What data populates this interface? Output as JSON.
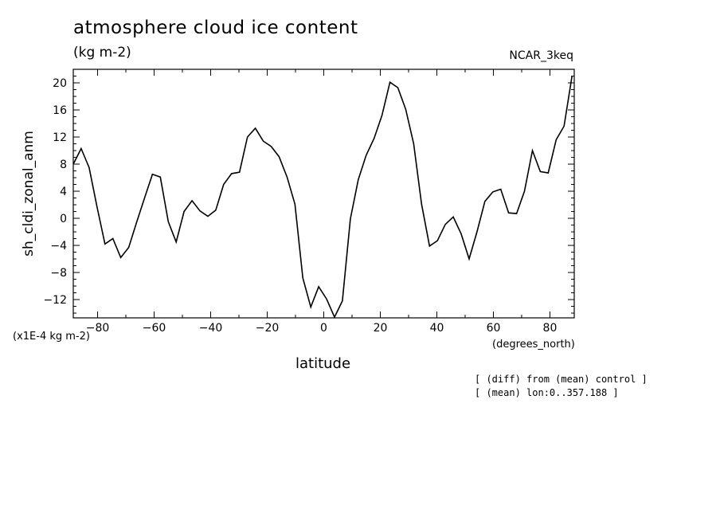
{
  "header": {
    "title": "atmosphere cloud ice content",
    "units": "(kg m-2)",
    "model": "NCAR_3keq"
  },
  "axes": {
    "ylabel": "sh_cldi_zonal_anm",
    "xlabel": "latitude",
    "yscale_note": "(x1E-4 kg m-2)",
    "xunits": "(degrees_north)"
  },
  "notes": {
    "line1": "[ (diff) from (mean) control ]",
    "line2": "[ (mean) lon:0..357.188 ]"
  },
  "colors": {
    "line": "#000000",
    "background": "#ffffff"
  },
  "chart_data": {
    "type": "line",
    "title": "atmosphere cloud ice content",
    "xlabel": "latitude",
    "ylabel": "sh_cldi_zonal_anm",
    "xlim": [
      -88.6,
      88.6
    ],
    "ylim": [
      -14.7,
      22
    ],
    "xticks": [
      -80,
      -60,
      -40,
      -20,
      0,
      20,
      40,
      60,
      80
    ],
    "yticks": [
      -12,
      -8,
      -4,
      0,
      4,
      8,
      12,
      16,
      20
    ],
    "grid": false,
    "series": [
      {
        "x": [
          -88.6,
          -85.8,
          -83.0,
          -80.2,
          -77.4,
          -74.6,
          -71.8,
          -69.0,
          -66.2,
          -63.4,
          -60.6,
          -57.8,
          -55.0,
          -52.2,
          -49.4,
          -46.6,
          -43.8,
          -41.0,
          -38.2,
          -35.4,
          -32.6,
          -29.8,
          -27.0,
          -24.2,
          -21.4,
          -18.6,
          -15.8,
          -13.0,
          -10.2,
          -7.4,
          -4.6,
          -1.8,
          1.0,
          3.8,
          6.6,
          9.4,
          12.2,
          15.0,
          17.8,
          20.6,
          23.4,
          26.2,
          29.0,
          31.8,
          34.6,
          37.4,
          40.2,
          43.0,
          45.8,
          48.6,
          51.4,
          54.2,
          57.0,
          59.8,
          62.6,
          65.4,
          68.2,
          71.0,
          73.8,
          76.6,
          79.4,
          82.2,
          85.0,
          87.8
        ],
        "values": [
          8.0,
          10.3,
          7.5,
          1.7,
          -3.8,
          -3.0,
          -5.8,
          -4.3,
          -0.6,
          3.0,
          6.5,
          6.1,
          -0.5,
          -3.5,
          1.0,
          2.6,
          1.1,
          0.3,
          1.2,
          5.0,
          6.6,
          6.8,
          12.0,
          13.3,
          11.4,
          10.6,
          9.1,
          6.1,
          2.1,
          -8.8,
          -13.1,
          -10.1,
          -11.9,
          -14.6,
          -12.2,
          -0.1,
          5.7,
          9.3,
          11.8,
          15.2,
          20.1,
          19.3,
          16.1,
          11.0,
          2.1,
          -4.1,
          -3.3,
          -0.9,
          0.2,
          -2.3,
          -6.0,
          -2.0,
          2.5,
          3.9,
          4.3,
          0.8,
          0.7,
          4.0,
          10.0,
          6.9,
          6.7,
          11.6,
          13.6,
          21.0
        ]
      }
    ]
  }
}
